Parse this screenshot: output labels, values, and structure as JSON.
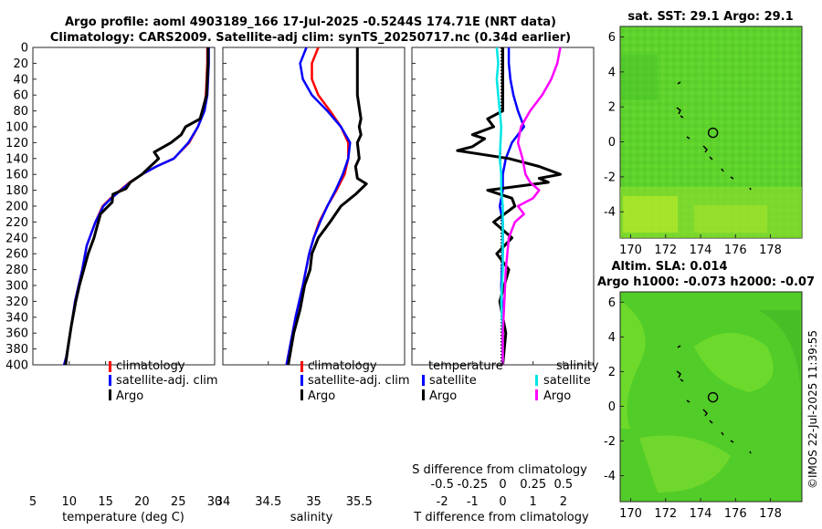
{
  "header": {
    "title_line1": "Argo profile: aoml 4903189_166 17-Jul-2025 -0.5244S 174.71E (NRT data)",
    "title_line2": "Climatology: CARS2009. Satellite-adj clim: synTS_20250717.nc (0.34d earlier)"
  },
  "map_panels": {
    "sst_title": "sat. SST: 29.1 Argo: 29.1",
    "sla_title1": "Altim. SLA: 0.014",
    "sla_title2": "Argo h1000: -0.073 h2000: -0.07",
    "lon_ticks": [
      "170",
      "172",
      "174",
      "176",
      "178"
    ],
    "lat_ticks": [
      "6",
      "4",
      "2",
      "0",
      "-2",
      "-4"
    ],
    "float_position": {
      "lon": 174.71,
      "lat": 0.52
    },
    "colors": {
      "field": "#5ed22c",
      "warm": "#c8ef2a",
      "cool": "#30c030"
    }
  },
  "credit": "©IMOS 22-Jul-2025 11:39:55",
  "chart_data": [
    {
      "type": "line",
      "id": "temperature",
      "xlabel": "temperature (deg C)",
      "ylabel": "",
      "xlim": [
        5,
        30
      ],
      "ylim": [
        400,
        0
      ],
      "xticks": [
        "5",
        "10",
        "15",
        "20",
        "25",
        "30"
      ],
      "yticks": [
        "0",
        "20",
        "40",
        "60",
        "80",
        "100",
        "120",
        "140",
        "160",
        "180",
        "200",
        "220",
        "240",
        "260",
        "280",
        "300",
        "320",
        "340",
        "360",
        "380",
        "400"
      ],
      "legend": {
        "position": "middle-right",
        "entries": [
          "climatology",
          "satellite-adj. clim",
          "Argo"
        ]
      },
      "series": [
        {
          "name": "climatology",
          "color": "#ff0000",
          "width": 2.5,
          "x": [
            29.0,
            29.0,
            28.9,
            28.8,
            28.5,
            27.7,
            26.5,
            24.4,
            22.0,
            20.0,
            18.3,
            17.0,
            15.7,
            14.6,
            13.6,
            12.4,
            11.8,
            11.3,
            10.8,
            10.3,
            9.6,
            9.3
          ],
          "y": [
            0,
            20,
            40,
            60,
            80,
            100,
            120,
            140,
            150,
            160,
            170,
            180,
            190,
            200,
            220,
            250,
            280,
            300,
            320,
            350,
            390,
            400
          ]
        },
        {
          "name": "satellite-adj. clim",
          "color": "#0000ff",
          "width": 2.5,
          "x": [
            29.2,
            29.2,
            29.1,
            29.0,
            28.6,
            27.7,
            26.4,
            24.4,
            22.0,
            20.0,
            18.4,
            17.1,
            15.8,
            14.7,
            13.6,
            12.4,
            11.8,
            11.3,
            10.8,
            10.3,
            9.6,
            9.3
          ],
          "y": [
            0,
            20,
            40,
            60,
            80,
            100,
            120,
            140,
            150,
            160,
            170,
            180,
            190,
            200,
            220,
            250,
            280,
            300,
            320,
            350,
            390,
            400
          ]
        },
        {
          "name": "Argo",
          "color": "#000000",
          "width": 3,
          "x": [
            29.1,
            29.1,
            29.0,
            28.9,
            28.3,
            28.0,
            26.0,
            25.4,
            24.0,
            21.7,
            22.3,
            20.0,
            18.4,
            17.8,
            16.0,
            15.9,
            14.3,
            13.4,
            12.6,
            12.0,
            11.4,
            10.9,
            10.3,
            9.8,
            9.5
          ],
          "y": [
            0,
            20,
            40,
            60,
            80,
            90,
            100,
            110,
            120,
            132,
            140,
            160,
            170,
            178,
            185,
            195,
            210,
            240,
            260,
            280,
            300,
            320,
            350,
            380,
            400
          ]
        }
      ]
    },
    {
      "type": "line",
      "id": "salinity",
      "xlabel": "salinity",
      "xlim": [
        34,
        36
      ],
      "ylim": [
        400,
        0
      ],
      "xticks": [
        "34",
        "34.5",
        "35",
        "35.5"
      ],
      "legend": {
        "position": "middle-right",
        "entries": [
          "climatology",
          "satellite-adj. clim",
          "Argo"
        ]
      },
      "series": [
        {
          "name": "climatology",
          "color": "#ff0000",
          "width": 2.5,
          "x": [
            35.05,
            34.98,
            34.98,
            35.05,
            35.18,
            35.3,
            35.38,
            35.38,
            35.34,
            35.25,
            35.15,
            35.06,
            35.0,
            34.95,
            34.88,
            34.8,
            34.7
          ],
          "y": [
            0,
            20,
            40,
            60,
            80,
            100,
            120,
            140,
            160,
            180,
            200,
            220,
            240,
            260,
            300,
            340,
            400
          ]
        },
        {
          "name": "satellite-adj. clim",
          "color": "#0000ff",
          "width": 2.5,
          "x": [
            34.92,
            34.85,
            34.88,
            34.98,
            35.15,
            35.3,
            35.4,
            35.38,
            35.32,
            35.24,
            35.15,
            35.07,
            35.0,
            34.95,
            34.88,
            34.8,
            34.7
          ],
          "y": [
            0,
            20,
            40,
            60,
            80,
            100,
            120,
            140,
            160,
            180,
            200,
            220,
            240,
            260,
            300,
            340,
            400
          ]
        },
        {
          "name": "Argo",
          "color": "#000000",
          "width": 3,
          "x": [
            35.48,
            35.48,
            35.48,
            35.52,
            35.5,
            35.52,
            35.48,
            35.5,
            35.46,
            35.48,
            35.58,
            35.46,
            35.3,
            35.18,
            35.05,
            34.98,
            34.96,
            34.9,
            34.85,
            34.78,
            34.72
          ],
          "y": [
            0,
            40,
            60,
            90,
            100,
            110,
            120,
            140,
            150,
            165,
            172,
            185,
            200,
            220,
            240,
            260,
            280,
            300,
            330,
            360,
            400
          ]
        }
      ]
    },
    {
      "type": "line",
      "id": "differences",
      "xlabel": "T difference from climatology",
      "xlabel_top": "S difference from climatology",
      "xlim": [
        -3,
        3
      ],
      "ylim": [
        400,
        0
      ],
      "xticks": [
        "-2",
        "-1",
        "0",
        "1",
        "2"
      ],
      "sticks": [
        "-0.5",
        "-0.25",
        "0",
        "0.25",
        "0.5"
      ],
      "legend": {
        "temperature_header": "temperature",
        "salinity_header": "salinity",
        "entries": [
          "satellite",
          "Argo",
          "satellite",
          "Argo"
        ]
      },
      "series": [
        {
          "name": "temperature satellite",
          "color": "#0000ff",
          "width": 2.5,
          "x": [
            0.2,
            0.2,
            0.25,
            0.35,
            0.5,
            0.7,
            0.3,
            0.1,
            0.0,
            0.0,
            -0.1,
            0.0,
            0.0,
            0.0,
            -0.05,
            0.0,
            0.0
          ],
          "y": [
            0,
            20,
            40,
            60,
            80,
            100,
            120,
            140,
            160,
            180,
            200,
            220,
            240,
            260,
            300,
            350,
            400
          ]
        },
        {
          "name": "temperature Argo",
          "color": "#000000",
          "width": 3,
          "x": [
            0.0,
            0.0,
            0.0,
            -0.5,
            -0.3,
            -1.0,
            -0.6,
            -1.0,
            -1.5,
            0.2,
            1.2,
            1.9,
            1.2,
            1.5,
            -0.5,
            0.3,
            0.4,
            -0.3,
            0.3,
            -0.2,
            0.2,
            -0.1,
            0.1,
            0.0
          ],
          "y": [
            0,
            60,
            80,
            90,
            100,
            110,
            115,
            125,
            130,
            140,
            150,
            160,
            165,
            170,
            180,
            190,
            200,
            220,
            240,
            260,
            280,
            320,
            360,
            400
          ]
        },
        {
          "name": "salinity satellite",
          "color": "#00e5e5",
          "width": 2.5,
          "x": [
            -0.2,
            -0.15,
            -0.2,
            -0.15,
            -0.1,
            -0.05,
            -0.1,
            -0.05,
            -0.05,
            0.0,
            0.0,
            0.0,
            -0.05,
            0.0,
            0.0
          ],
          "y": [
            0,
            20,
            40,
            60,
            80,
            100,
            140,
            160,
            180,
            200,
            240,
            280,
            320,
            360,
            400
          ]
        },
        {
          "name": "salinity Argo",
          "color": "#ff00ff",
          "width": 2.5,
          "x": [
            1.9,
            1.8,
            1.6,
            1.3,
            0.9,
            0.6,
            0.5,
            0.65,
            0.75,
            0.9,
            1.2,
            1.0,
            0.5,
            0.7,
            0.4,
            0.2,
            0.1,
            0.05,
            0.0,
            0.0
          ],
          "y": [
            0,
            20,
            40,
            60,
            80,
            100,
            120,
            140,
            160,
            170,
            180,
            190,
            200,
            210,
            220,
            240,
            280,
            320,
            360,
            400
          ]
        }
      ]
    }
  ]
}
